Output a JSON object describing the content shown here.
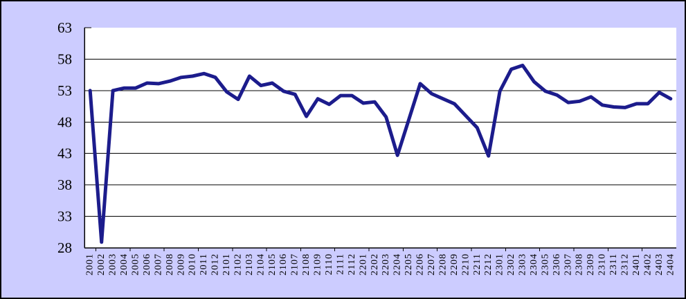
{
  "chart_data": {
    "type": "line",
    "x": [
      "2001",
      "2002",
      "2003",
      "2004",
      "2005",
      "2006",
      "2007",
      "2008",
      "2009",
      "2010",
      "2011",
      "2012",
      "2101",
      "2102",
      "2103",
      "2104",
      "2105",
      "2106",
      "2107",
      "2108",
      "2109",
      "2110",
      "2111",
      "2112",
      "2201",
      "2202",
      "2203",
      "2204",
      "2205",
      "2206",
      "2207",
      "2208",
      "2209",
      "2210",
      "2211",
      "2212",
      "2301",
      "2302",
      "2303",
      "2304",
      "2305",
      "2306",
      "2307",
      "2308",
      "2309",
      "2310",
      "2311",
      "2312",
      "2401",
      "2402",
      "2403",
      "2404"
    ],
    "series": [
      {
        "name": "",
        "values": [
          53.0,
          28.9,
          53.0,
          53.4,
          53.4,
          54.2,
          54.1,
          54.5,
          55.1,
          55.3,
          55.7,
          55.1,
          52.8,
          51.6,
          55.3,
          53.8,
          54.2,
          52.9,
          52.4,
          48.9,
          51.7,
          50.8,
          52.2,
          52.2,
          51.0,
          51.2,
          48.8,
          42.7,
          48.4,
          54.1,
          52.5,
          51.7,
          50.9,
          49.0,
          47.1,
          42.6,
          52.9,
          56.4,
          57.0,
          54.4,
          52.9,
          52.3,
          51.1,
          51.3,
          52.0,
          50.7,
          50.4,
          50.3,
          50.9,
          50.9,
          52.7,
          51.7
        ]
      }
    ],
    "ylim": [
      28,
      63
    ],
    "yticks": [
      28,
      33,
      38,
      43,
      48,
      53,
      58,
      63
    ],
    "x_tick_interval": 3,
    "grid": true,
    "legend": "none"
  },
  "colors": {
    "background": "#CCCCFF",
    "plot_background": "#FFFFFF",
    "line": "#1C1C8C",
    "grid": "#000000",
    "axis": "#000000",
    "text": "#000000",
    "border": "#000000"
  }
}
